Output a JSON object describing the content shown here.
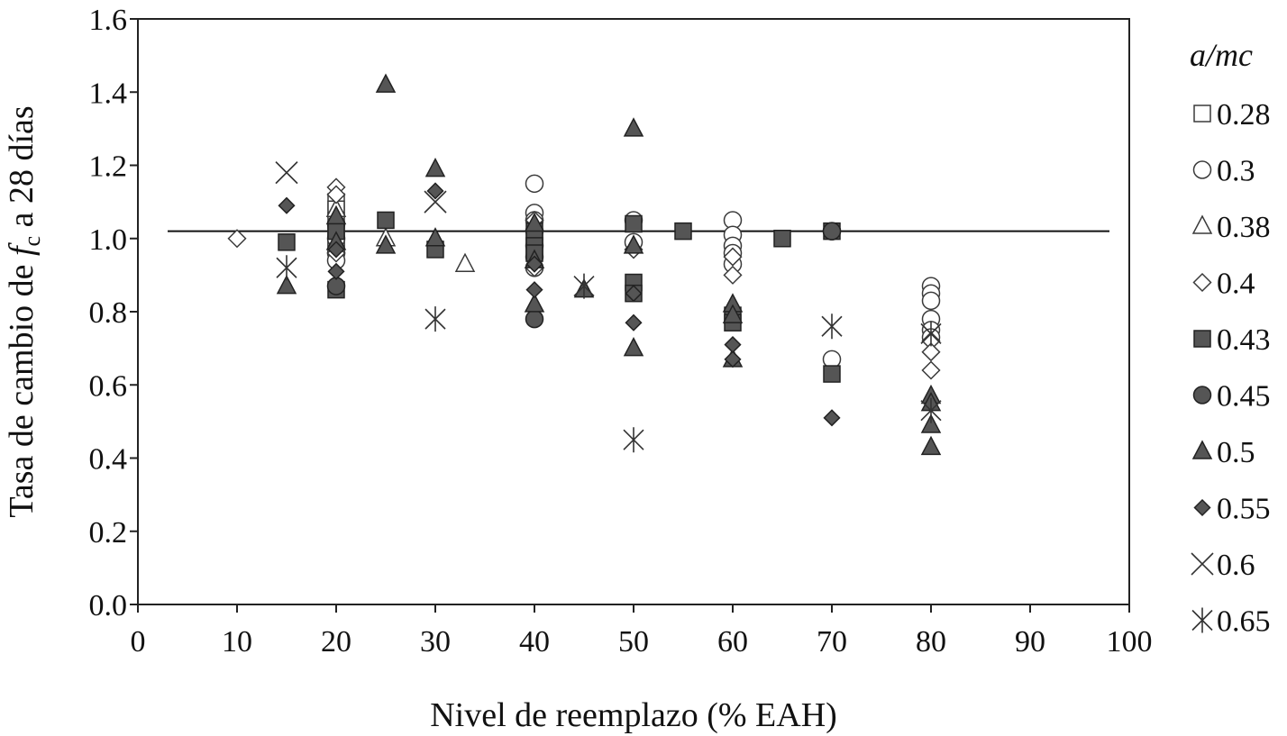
{
  "chart_data": {
    "type": "scatter",
    "title": "",
    "xlabel": "Nivel de reemplazo (% EAH)",
    "ylabel": {
      "pre": "Tasa de cambio de ",
      "f": "f",
      "sub": "c",
      "post": " a 28 días"
    },
    "xlim": [
      0,
      100
    ],
    "ylim": [
      0.0,
      1.6
    ],
    "x_ticks": [
      "0",
      "10",
      "20",
      "30",
      "40",
      "50",
      "60",
      "70",
      "80",
      "90",
      "100"
    ],
    "y_ticks": [
      "0.0",
      "0.2",
      "0.4",
      "0.6",
      "0.8",
      "1.0",
      "1.2",
      "1.4",
      "1.6"
    ],
    "grid": false,
    "reference_line": {
      "y": 1.02,
      "x_from": 3,
      "x_to": 98
    },
    "legend": {
      "title": "a/mc",
      "placement": "right"
    },
    "series": [
      {
        "name": "0.28",
        "marker": "square-open",
        "points": [
          [
            20,
            1.1
          ],
          [
            20,
            1.08
          ],
          [
            20,
            1.05
          ],
          [
            20,
            1.02
          ],
          [
            20,
            1.0
          ],
          [
            20,
            0.98
          ],
          [
            40,
            1.0
          ],
          [
            40,
            0.98
          ]
        ]
      },
      {
        "name": "0.3",
        "marker": "circle-open",
        "points": [
          [
            20,
            1.04
          ],
          [
            20,
            1.0
          ],
          [
            20,
            0.96
          ],
          [
            20,
            0.94
          ],
          [
            40,
            1.15
          ],
          [
            40,
            1.07
          ],
          [
            40,
            1.05
          ],
          [
            40,
            1.02
          ],
          [
            40,
            0.98
          ],
          [
            40,
            0.95
          ],
          [
            40,
            0.92
          ],
          [
            50,
            1.05
          ],
          [
            50,
            0.99
          ],
          [
            60,
            1.05
          ],
          [
            60,
            1.01
          ],
          [
            60,
            0.98
          ],
          [
            60,
            0.96
          ],
          [
            60,
            0.93
          ],
          [
            70,
            1.02
          ],
          [
            70,
            0.67
          ],
          [
            80,
            0.87
          ],
          [
            80,
            0.85
          ],
          [
            80,
            0.83
          ],
          [
            80,
            0.78
          ],
          [
            80,
            0.75
          ],
          [
            80,
            0.73
          ]
        ]
      },
      {
        "name": "0.38",
        "marker": "triangle-open",
        "points": [
          [
            20,
            1.08
          ],
          [
            25,
            1.0
          ],
          [
            33,
            0.93
          ]
        ]
      },
      {
        "name": "0.4",
        "marker": "diamond-open",
        "points": [
          [
            10,
            1.0
          ],
          [
            20,
            1.14
          ],
          [
            20,
            1.12
          ],
          [
            20,
            0.96
          ],
          [
            40,
            1.05
          ],
          [
            40,
            0.92
          ],
          [
            50,
            0.97
          ],
          [
            60,
            0.95
          ],
          [
            60,
            0.9
          ],
          [
            80,
            0.72
          ],
          [
            80,
            0.69
          ],
          [
            80,
            0.64
          ]
        ]
      },
      {
        "name": "0.43",
        "marker": "square-filled",
        "points": [
          [
            15,
            0.99
          ],
          [
            20,
            1.02
          ],
          [
            20,
            0.86
          ],
          [
            25,
            1.05
          ],
          [
            30,
            0.97
          ],
          [
            40,
            1.02
          ],
          [
            40,
            0.98
          ],
          [
            40,
            0.96
          ],
          [
            50,
            1.04
          ],
          [
            50,
            0.88
          ],
          [
            50,
            0.85
          ],
          [
            55,
            1.02
          ],
          [
            60,
            0.79
          ],
          [
            60,
            0.77
          ],
          [
            65,
            1.0
          ],
          [
            70,
            1.02
          ],
          [
            70,
            0.63
          ]
        ]
      },
      {
        "name": "0.45",
        "marker": "circle-filled",
        "points": [
          [
            20,
            0.87
          ],
          [
            40,
            0.78
          ],
          [
            70,
            1.02
          ]
        ]
      },
      {
        "name": "0.5",
        "marker": "triangle-filled",
        "points": [
          [
            15,
            0.87
          ],
          [
            20,
            1.06
          ],
          [
            20,
            0.99
          ],
          [
            25,
            1.42
          ],
          [
            25,
            0.98
          ],
          [
            30,
            1.19
          ],
          [
            30,
            1.0
          ],
          [
            40,
            1.04
          ],
          [
            40,
            0.94
          ],
          [
            40,
            0.82
          ],
          [
            45,
            0.86
          ],
          [
            50,
            1.3
          ],
          [
            50,
            0.98
          ],
          [
            50,
            0.7
          ],
          [
            60,
            0.82
          ],
          [
            60,
            0.79
          ],
          [
            60,
            0.67
          ],
          [
            80,
            0.57
          ],
          [
            80,
            0.55
          ],
          [
            80,
            0.49
          ],
          [
            80,
            0.43
          ]
        ]
      },
      {
        "name": "0.55",
        "marker": "diamond-filled",
        "points": [
          [
            15,
            1.09
          ],
          [
            20,
            0.97
          ],
          [
            20,
            0.91
          ],
          [
            30,
            1.13
          ],
          [
            40,
            0.93
          ],
          [
            40,
            0.86
          ],
          [
            50,
            0.85
          ],
          [
            50,
            0.77
          ],
          [
            60,
            0.71
          ],
          [
            60,
            0.67
          ],
          [
            70,
            0.51
          ]
        ]
      },
      {
        "name": "0.6",
        "marker": "x",
        "points": [
          [
            15,
            1.18
          ],
          [
            30,
            1.1
          ]
        ]
      },
      {
        "name": "0.65",
        "marker": "asterisk",
        "points": [
          [
            15,
            0.92
          ],
          [
            30,
            0.78
          ],
          [
            45,
            0.87
          ],
          [
            50,
            0.45
          ],
          [
            70,
            0.76
          ],
          [
            80,
            0.74
          ],
          [
            80,
            0.53
          ]
        ]
      }
    ]
  }
}
